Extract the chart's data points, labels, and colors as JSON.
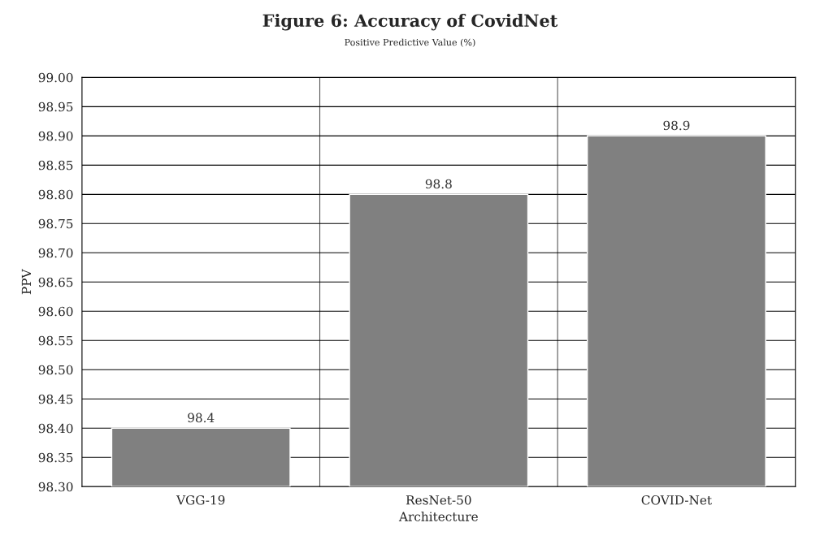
{
  "chart_data": {
    "type": "bar",
    "title": "Figure 6: Accuracy of CovidNet",
    "subtitle": "Positive Predictive Value (%)",
    "xlabel": "Architecture",
    "ylabel": "PPV",
    "categories": [
      "VGG-19",
      "ResNet-50",
      "COVID-Net"
    ],
    "values": [
      98.4,
      98.8,
      98.9
    ],
    "color": "#808080",
    "ylim": [
      98.3,
      99.0
    ],
    "yticks": [
      {
        "value": 98.3,
        "label": "98.30"
      },
      {
        "value": 98.35,
        "label": "98.35"
      },
      {
        "value": 98.4,
        "label": "98.40"
      },
      {
        "value": 98.45,
        "label": "98.45"
      },
      {
        "value": 98.5,
        "label": "98.50"
      },
      {
        "value": 98.55,
        "label": "98.55"
      },
      {
        "value": 98.6,
        "label": "98.60"
      },
      {
        "value": 98.65,
        "label": "98.65"
      },
      {
        "value": 98.7,
        "label": "98.70"
      },
      {
        "value": 98.75,
        "label": "98.75"
      },
      {
        "value": 98.8,
        "label": "98.80"
      },
      {
        "value": 98.85,
        "label": "98.85"
      },
      {
        "value": 98.9,
        "label": "98.90"
      },
      {
        "value": 98.95,
        "label": "98.95"
      },
      {
        "value": 99.0,
        "label": "99.00"
      }
    ],
    "grid": true,
    "data_labels": true
  }
}
